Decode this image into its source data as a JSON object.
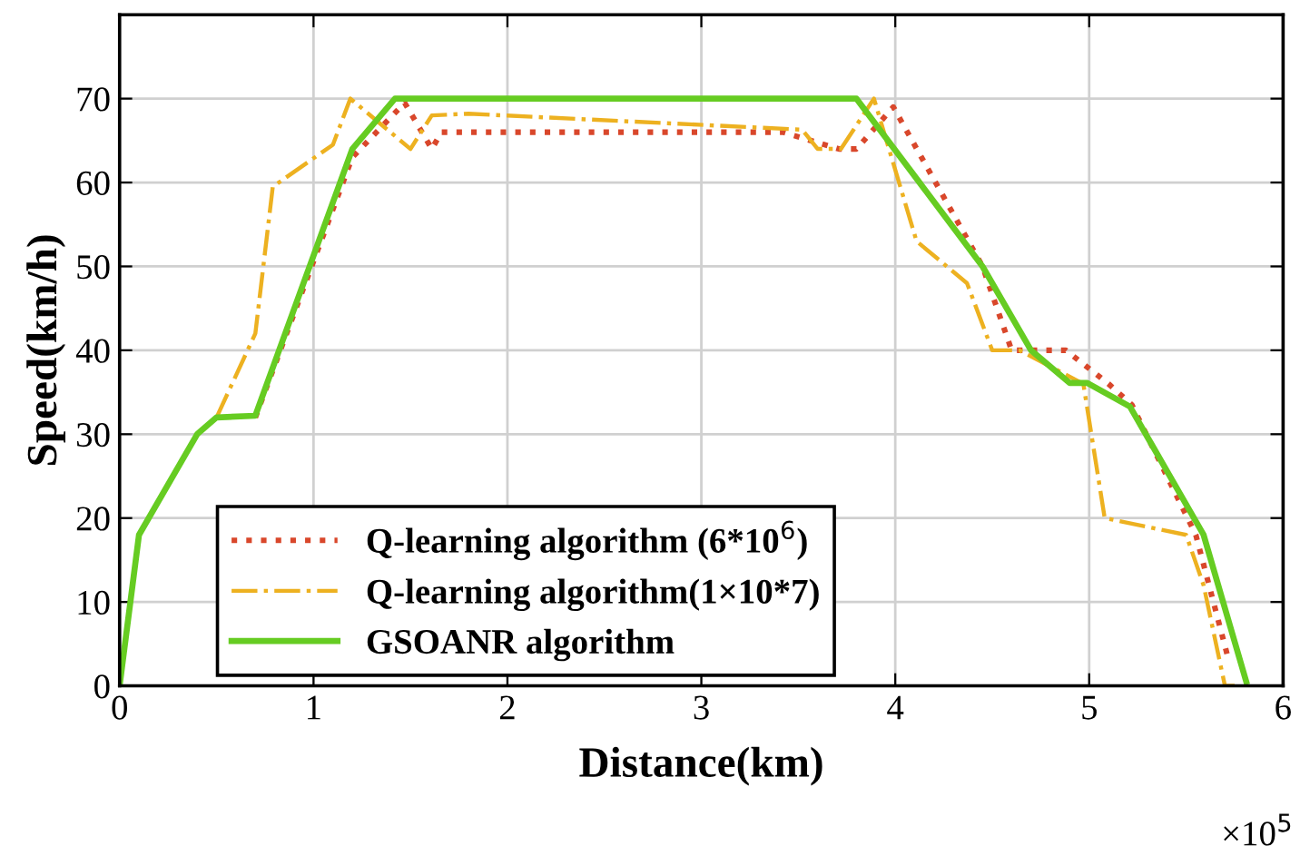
{
  "chart_data": {
    "type": "line",
    "xlabel": "Distance(km)",
    "ylabel": "Speed(km/h)",
    "annotations": [
      "×10$^{5}$"
    ],
    "xlim": [
      0,
      6
    ],
    "xticks": [
      0,
      1,
      2,
      3,
      4,
      5,
      6
    ],
    "ylim": [
      0,
      80
    ],
    "yticks": [
      0,
      10,
      20,
      30,
      40,
      50,
      60,
      70
    ],
    "grid": true,
    "legend": "bottom left",
    "series": [
      {
        "name": "Q-learning algorithm (6*10$^{6}$)",
        "color": "#d9472b",
        "line_style": "dotted",
        "x": [
          0.7,
          1.2,
          1.47,
          1.61,
          1.66,
          3.42,
          3.71,
          3.8,
          3.99,
          4.45,
          4.6,
          4.88,
          5.1,
          5.22,
          5.55,
          5.72
        ],
        "values": [
          32,
          63,
          69.5,
          64,
          66,
          66,
          64,
          64,
          69,
          50,
          40,
          40,
          36,
          33.5,
          18,
          3
        ]
      },
      {
        "name": "Q-learning algorithm(1×10*7)",
        "color": "#edb120",
        "line_style": "dashdot",
        "x": [
          0.5,
          0.7,
          0.79,
          1.1,
          1.19,
          1.5,
          1.61,
          1.8,
          3.52,
          3.6,
          3.72,
          3.89,
          4.11,
          4.37,
          4.5,
          4.64,
          4.97,
          5.08,
          5.5,
          5.59,
          5.7,
          5.75
        ],
        "values": [
          32,
          42,
          59.5,
          64.5,
          70,
          64,
          68,
          68.2,
          66.3,
          64,
          64,
          70,
          53,
          48,
          40,
          40,
          36,
          20,
          18,
          12,
          0,
          0
        ]
      },
      {
        "name": "GSOANR algorithm",
        "color": "#66cc22",
        "line_style": "solid",
        "x": [
          0,
          0.1,
          0.4,
          0.5,
          0.7,
          1.2,
          1.42,
          3.8,
          4.45,
          4.7,
          4.9,
          4.99,
          5.21,
          5.59,
          5.81
        ],
        "values": [
          0,
          18,
          30,
          32,
          32.2,
          64,
          70,
          70,
          50,
          40,
          36.1,
          36.1,
          33.3,
          18,
          0.5
        ]
      }
    ]
  }
}
